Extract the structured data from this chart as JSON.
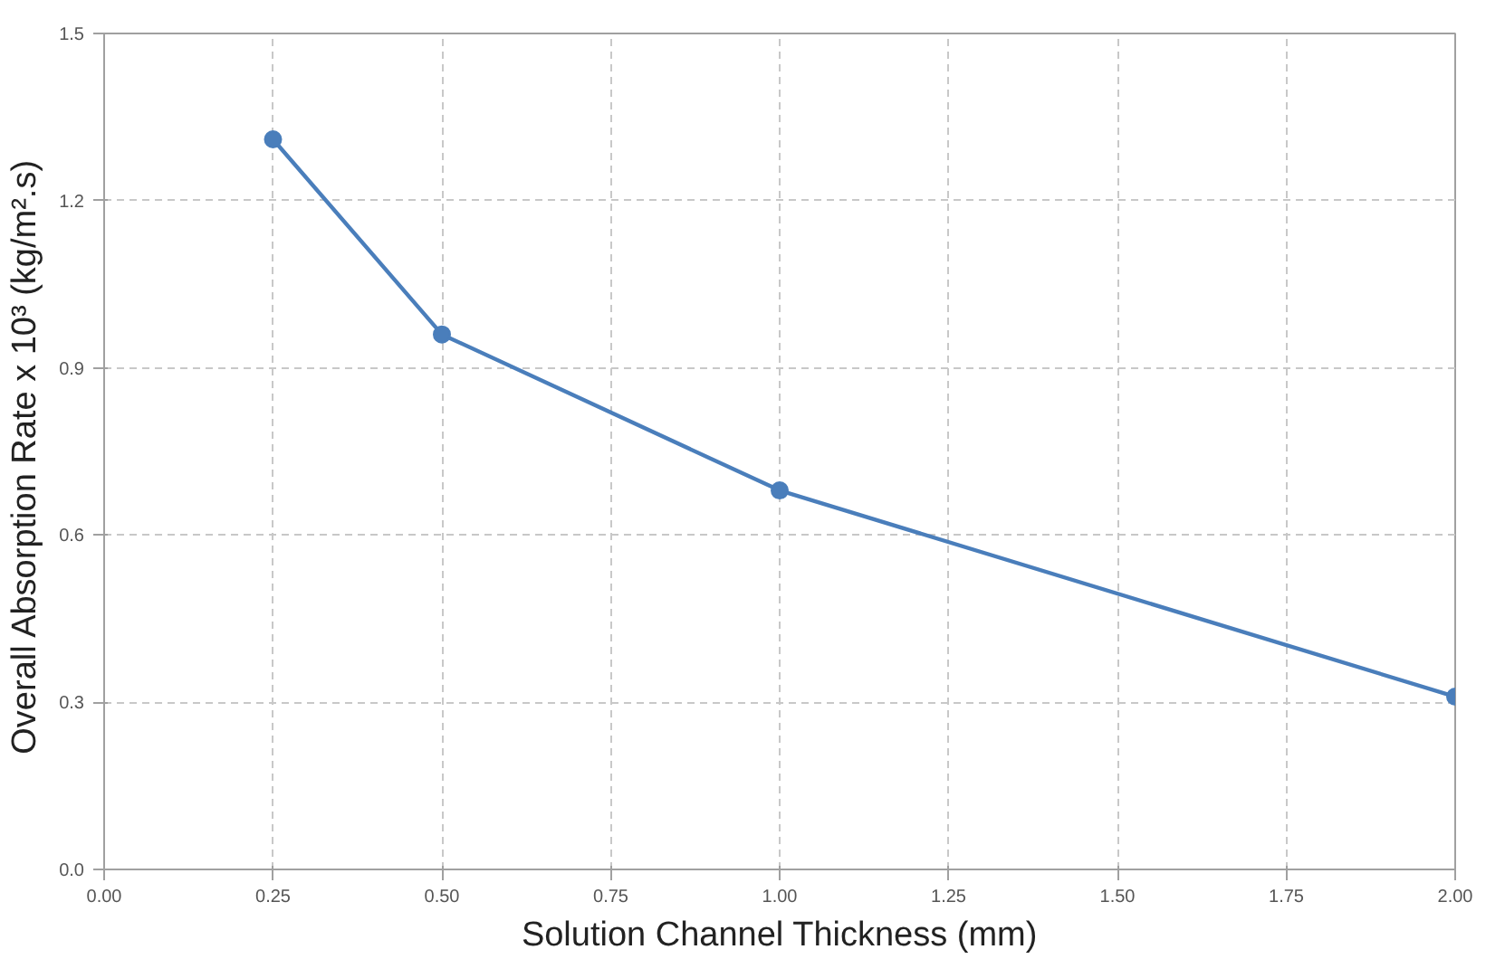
{
  "chart_data": {
    "type": "line",
    "xlabel": "Solution Channel Thickness (mm)",
    "ylabel": "Overall Absorption Rate x 10³  (kg/m².s)",
    "x": [
      0.25,
      0.5,
      1.0,
      2.0
    ],
    "series": [
      {
        "color": "#4a7ebb",
        "values": [
          1.31,
          0.96,
          0.68,
          0.31
        ]
      }
    ],
    "xlim": [
      0,
      2
    ],
    "ylim": [
      0,
      1.5
    ],
    "xticks": [
      {
        "value": 0,
        "label": "0.00"
      },
      {
        "value": 0.25,
        "label": "0.25"
      },
      {
        "value": 0.5,
        "label": "0.50"
      },
      {
        "value": 0.75,
        "label": "0.75"
      },
      {
        "value": 1,
        "label": "1.00"
      },
      {
        "value": 1.25,
        "label": "1.25"
      },
      {
        "value": 1.5,
        "label": "1.50"
      },
      {
        "value": 1.75,
        "label": "1.75"
      },
      {
        "value": 2,
        "label": "2.00"
      }
    ],
    "yticks": [
      {
        "value": 0,
        "label": "0.0"
      },
      0.3,
      0.6,
      0.9,
      1.2,
      1.5
    ],
    "grid": true,
    "marker": "circle",
    "line_style": "solid"
  }
}
